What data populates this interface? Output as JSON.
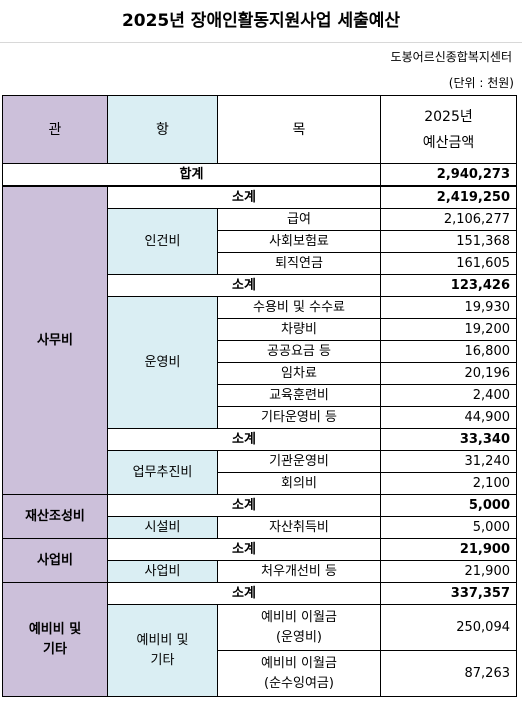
{
  "title": "2025년 장애인활동지원사업 세출예산",
  "org": "도봉어르신종합복지센터",
  "unit": "(단위 : 천원)",
  "header": {
    "gwan": "관",
    "hang": "항",
    "mok": "목",
    "amount": "2025년\n예산금액"
  },
  "total": {
    "label": "합계",
    "amount": "2,940,273"
  },
  "sections": [
    {
      "gwan": "사무비",
      "groups": [
        {
          "subtotal_label": "소계",
          "subtotal": "2,419,250",
          "hang": "인건비",
          "items": [
            {
              "mok": "급여",
              "amount": "2,106,277"
            },
            {
              "mok": "사회보험료",
              "amount": "151,368"
            },
            {
              "mok": "퇴직연금",
              "amount": "161,605"
            }
          ]
        },
        {
          "subtotal_label": "소계",
          "subtotal": "123,426",
          "hang": "운영비",
          "items": [
            {
              "mok": "수용비 및 수수료",
              "amount": "19,930"
            },
            {
              "mok": "차량비",
              "amount": "19,200"
            },
            {
              "mok": "공공요금 등",
              "amount": "16,800"
            },
            {
              "mok": "임차료",
              "amount": "20,196"
            },
            {
              "mok": "교육훈련비",
              "amount": "2,400"
            },
            {
              "mok": "기타운영비 등",
              "amount": "44,900"
            }
          ]
        },
        {
          "subtotal_label": "소계",
          "subtotal": "33,340",
          "hang": "업무추진비",
          "items": [
            {
              "mok": "기관운영비",
              "amount": "31,240"
            },
            {
              "mok": "회의비",
              "amount": "2,100"
            }
          ]
        }
      ]
    },
    {
      "gwan": "재산조성비",
      "groups": [
        {
          "subtotal_label": "소계",
          "subtotal": "5,000",
          "hang": "시설비",
          "items": [
            {
              "mok": "자산취득비",
              "amount": "5,000"
            }
          ]
        }
      ]
    },
    {
      "gwan": "사업비",
      "groups": [
        {
          "subtotal_label": "소계",
          "subtotal": "21,900",
          "hang": "사업비",
          "items": [
            {
              "mok": "처우개선비 등",
              "amount": "21,900"
            }
          ]
        }
      ]
    },
    {
      "gwan": "예비비 및\n기타",
      "groups": [
        {
          "subtotal_label": "소계",
          "subtotal": "337,357",
          "hang": "예비비 및\n기타",
          "items": [
            {
              "mok": "예비비 이월금\n(운영비)",
              "amount": "250,094"
            },
            {
              "mok": "예비비 이월금\n(순수잉여금)",
              "amount": "87,263"
            }
          ]
        }
      ]
    }
  ]
}
